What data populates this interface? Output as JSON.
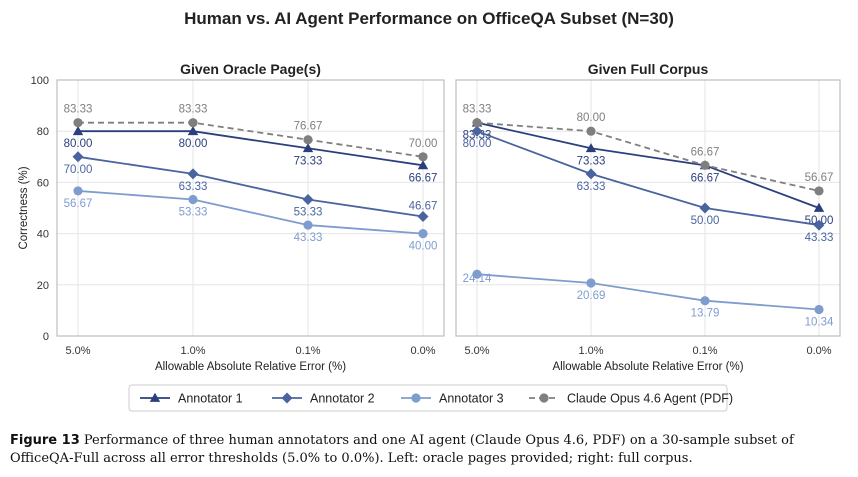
{
  "figure": {
    "suptitle": "Human vs. AI Agent Performance on OfficeQA Subset (N=30)",
    "caption_label": "Figure 13",
    "caption_text": "Performance of three human annotators and one AI agent (Claude Opus 4.6, PDF) on a 30-sample subset of OfficeQA-Full across all error thresholds (5.0% to 0.0%). Left: oracle pages provided; right: full corpus."
  },
  "legend": {
    "placement": "bottom-center",
    "entries": [
      {
        "name": "Annotator 1",
        "color": "#2b3f7c",
        "marker": "triangle",
        "dash": false
      },
      {
        "name": "Annotator 2",
        "color": "#4a64a0",
        "marker": "diamond",
        "dash": false
      },
      {
        "name": "Annotator 3",
        "color": "#7f9ccf",
        "marker": "circle",
        "dash": false
      },
      {
        "name": "Claude Opus 4.6 Agent (PDF)",
        "color": "#7f7f7f",
        "marker": "circle",
        "dash": true
      }
    ]
  },
  "chart_data": [
    {
      "type": "line",
      "title": "Given Oracle Page(s)",
      "xlabel": "Allowable Absolute Relative Error (%)",
      "ylabel": "Correctness (%)",
      "categories": [
        "5.0%",
        "1.0%",
        "0.1%",
        "0.0%"
      ],
      "ylim": [
        0,
        100
      ],
      "yticks": [
        0,
        20,
        40,
        60,
        80,
        100
      ],
      "grid": true,
      "series": [
        {
          "name": "Annotator 1",
          "values": [
            80.0,
            80.0,
            73.33,
            66.67
          ],
          "labels": [
            "80.00",
            "80.00",
            "73.33",
            "66.67"
          ]
        },
        {
          "name": "Annotator 2",
          "values": [
            70.0,
            63.33,
            53.33,
            46.67
          ],
          "labels": [
            "70.00",
            "63.33",
            "53.33",
            "46.67"
          ]
        },
        {
          "name": "Annotator 3",
          "values": [
            56.67,
            53.33,
            43.33,
            40.0
          ],
          "labels": [
            "56.67",
            "53.33",
            "43.33",
            "40.00"
          ]
        },
        {
          "name": "Claude Opus 4.6 Agent (PDF)",
          "values": [
            83.33,
            83.33,
            76.67,
            70.0
          ],
          "labels": [
            "83.33",
            "83.33",
            "76.67",
            "70.00"
          ]
        }
      ]
    },
    {
      "type": "line",
      "title": "Given Full Corpus",
      "xlabel": "Allowable Absolute Relative Error (%)",
      "ylabel": "",
      "categories": [
        "5.0%",
        "1.0%",
        "0.1%",
        "0.0%"
      ],
      "ylim": [
        0,
        100
      ],
      "yticks": [
        0,
        20,
        40,
        60,
        80,
        100
      ],
      "grid": true,
      "series": [
        {
          "name": "Annotator 1",
          "values": [
            83.33,
            73.33,
            66.67,
            50.0
          ],
          "labels": [
            "83.33",
            "73.33",
            "66.67",
            "50.00"
          ]
        },
        {
          "name": "Annotator 2",
          "values": [
            80.0,
            63.33,
            50.0,
            43.33
          ],
          "labels": [
            "80.00",
            "63.33",
            "50.00",
            "43.33"
          ]
        },
        {
          "name": "Annotator 3",
          "values": [
            24.14,
            20.69,
            13.79,
            10.34
          ],
          "labels": [
            "24.14",
            "20.69",
            "13.79",
            "10.34"
          ]
        },
        {
          "name": "Claude Opus 4.6 Agent (PDF)",
          "values": [
            83.33,
            80.0,
            66.67,
            56.67
          ],
          "labels": [
            "83.33",
            "80.00",
            "66.67",
            "56.67"
          ]
        }
      ]
    }
  ]
}
